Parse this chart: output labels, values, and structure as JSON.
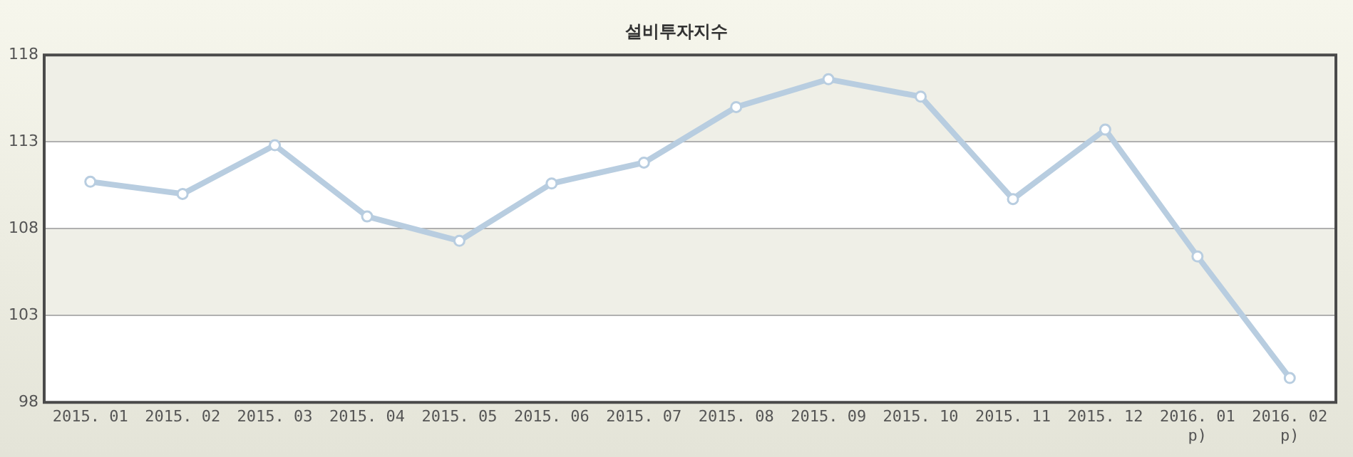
{
  "chart_data": {
    "type": "line",
    "title": "설비투자지수",
    "categories": [
      "2015. 01",
      "2015. 02",
      "2015. 03",
      "2015. 04",
      "2015. 05",
      "2015. 06",
      "2015. 07",
      "2015. 08",
      "2015. 09",
      "2015. 10",
      "2015. 11",
      "2015. 12",
      "2016. 01\np)",
      "2016. 02\np)"
    ],
    "series": [
      {
        "color": "#b8cde0",
        "values": [
          110.7,
          110.0,
          112.8,
          108.7,
          107.3,
          110.6,
          111.8,
          115.0,
          116.6,
          115.6,
          109.7,
          113.7,
          106.4,
          99.4
        ]
      }
    ],
    "ylim": [
      98,
      118
    ],
    "yticks": [
      98,
      103,
      108,
      113,
      118
    ],
    "grid": "y",
    "marker": "circle",
    "line_style": "solid",
    "legend": false
  }
}
